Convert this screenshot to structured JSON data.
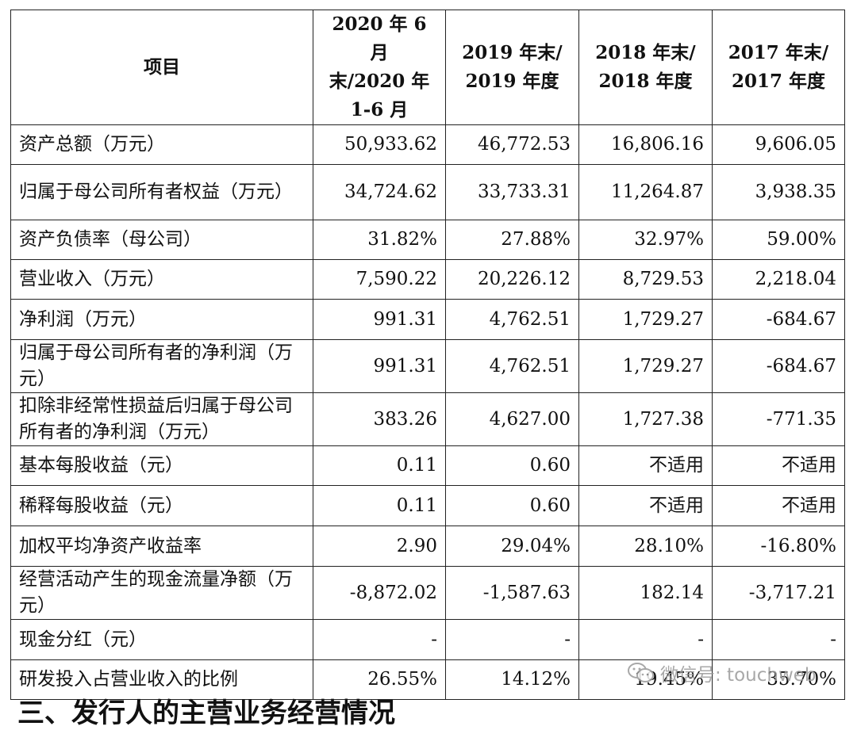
{
  "table": {
    "headers": [
      "项目",
      "2020 年 6 月末/2020 年 1-6 月",
      "2019 年末/ 2019 年度",
      "2018 年末/ 2018 年度",
      "2017 年末/ 2017 年度"
    ],
    "rows": [
      {
        "label": "资产总额（万元）",
        "values": [
          "50,933.62",
          "46,772.53",
          "16,806.16",
          "9,606.05"
        ]
      },
      {
        "label": "归属于母公司所有者权益（万元）",
        "values": [
          "34,724.62",
          "33,733.31",
          "11,264.87",
          "3,938.35"
        ]
      },
      {
        "label": "资产负债率（母公司）",
        "values": [
          "31.82%",
          "27.88%",
          "32.97%",
          "59.00%"
        ]
      },
      {
        "label": "营业收入（万元）",
        "values": [
          "7,590.22",
          "20,226.12",
          "8,729.53",
          "2,218.04"
        ]
      },
      {
        "label": "净利润（万元）",
        "values": [
          "991.31",
          "4,762.51",
          "1,729.27",
          "-684.67"
        ]
      },
      {
        "label": "归属于母公司所有者的净利润（万元）",
        "values": [
          "991.31",
          "4,762.51",
          "1,729.27",
          "-684.67"
        ]
      },
      {
        "label": "扣除非经常性损益后归属于母公司所有者的净利润（万元）",
        "values": [
          "383.26",
          "4,627.00",
          "1,727.38",
          "-771.35"
        ]
      },
      {
        "label": "基本每股收益（元）",
        "values": [
          "0.11",
          "0.60",
          "不适用",
          "不适用"
        ]
      },
      {
        "label": "稀释每股收益（元）",
        "values": [
          "0.11",
          "0.60",
          "不适用",
          "不适用"
        ]
      },
      {
        "label": "加权平均净资产收益率",
        "values": [
          "2.90",
          "29.04%",
          "28.10%",
          "-16.80%"
        ]
      },
      {
        "label": "经营活动产生的现金流量净额（万元）",
        "values": [
          "-8,872.02",
          "-1,587.63",
          "182.14",
          "-3,717.21"
        ]
      },
      {
        "label": "现金分红（元）",
        "values": [
          "-",
          "-",
          "-",
          "-"
        ]
      },
      {
        "label": "研发投入占营业收入的比例",
        "values": [
          "26.55%",
          "14.12%",
          "19.45%",
          "35.70%"
        ]
      }
    ]
  },
  "watermark": {
    "text": "微信号: touchweb",
    "icon": "wechat-icon"
  },
  "footer": {
    "text": "三、发行人的主营业务经营情况"
  }
}
